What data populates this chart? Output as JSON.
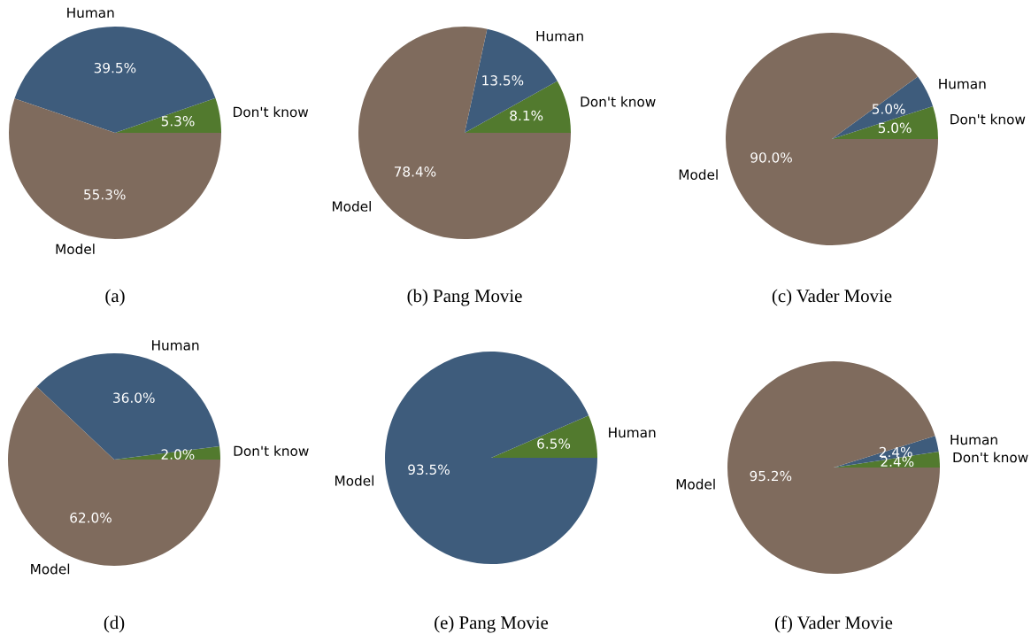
{
  "chart_data": [
    {
      "type": "pie",
      "title": "(a)",
      "categories": [
        "Don't know",
        "Human",
        "Model"
      ],
      "values": [
        5.3,
        39.5,
        55.3
      ],
      "value_labels": [
        "5.3%",
        "39.5%",
        "55.3%"
      ],
      "colors": [
        "#527a2e",
        "#3e5c7c",
        "#7f6b5d"
      ]
    },
    {
      "type": "pie",
      "title": "(b) Pang Movie",
      "categories": [
        "Don't know",
        "Human",
        "Model"
      ],
      "values": [
        8.1,
        13.5,
        78.4
      ],
      "value_labels": [
        "8.1%",
        "13.5%",
        "78.4%"
      ],
      "colors": [
        "#527a2e",
        "#3e5c7c",
        "#7f6b5d"
      ]
    },
    {
      "type": "pie",
      "title": "(c) Vader Movie",
      "categories": [
        "Don't know",
        "Human",
        "Model"
      ],
      "values": [
        5.0,
        5.0,
        90.0
      ],
      "value_labels": [
        "5.0%",
        "5.0%",
        "90.0%"
      ],
      "colors": [
        "#527a2e",
        "#3e5c7c",
        "#7f6b5d"
      ]
    },
    {
      "type": "pie",
      "title": "(d)",
      "categories": [
        "Don't know",
        "Human",
        "Model"
      ],
      "values": [
        2.0,
        36.0,
        62.0
      ],
      "value_labels": [
        "2.0%",
        "36.0%",
        "62.0%"
      ],
      "colors": [
        "#527a2e",
        "#3e5c7c",
        "#7f6b5d"
      ]
    },
    {
      "type": "pie",
      "title": "(e) Pang Movie",
      "categories": [
        "Human",
        "Model"
      ],
      "values": [
        6.5,
        93.5
      ],
      "value_labels": [
        "6.5%",
        "93.5%"
      ],
      "colors": [
        "#527a2e",
        "#3e5c7c"
      ]
    },
    {
      "type": "pie",
      "title": "(f) Vader Movie",
      "categories": [
        "Don't know",
        "Human",
        "Model"
      ],
      "values": [
        2.4,
        2.4,
        95.2
      ],
      "value_labels": [
        "2.4%",
        "2.4%",
        "95.2%"
      ],
      "colors": [
        "#527a2e",
        "#3e5c7c",
        "#7f6b5d"
      ]
    }
  ]
}
